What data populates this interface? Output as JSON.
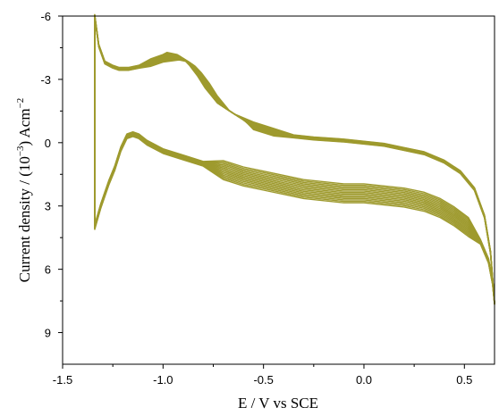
{
  "chart_data": {
    "type": "line",
    "title": "",
    "xlabel": "E / V vs SCE",
    "ylabel": {
      "text": "Current density / (10",
      "exp1": "−3",
      "mid": ") Acm",
      "exp2": "−2"
    },
    "xlim": [
      -1.5,
      0.65
    ],
    "ylim": [
      -6,
      10.5
    ],
    "y_inverted": true,
    "x_ticks": [
      -1.5,
      -1.0,
      -0.5,
      0.0,
      0.5
    ],
    "x_tick_labels": [
      "-1.5",
      "-1.0",
      "-0.5",
      "0.0",
      "0.5"
    ],
    "y_ticks": [
      -6,
      -3,
      0,
      3,
      6,
      9
    ],
    "y_tick_labels": [
      "-6",
      "-3",
      "0",
      "3",
      "6",
      "9"
    ],
    "grid": false,
    "series_color": "#9e9a2e",
    "cycles": 14,
    "series": [
      {
        "description": "cyclic voltammogram, averaged cycle path",
        "x": [
          -1.34,
          -1.32,
          -1.29,
          -1.25,
          -1.22,
          -1.17,
          -1.12,
          -1.06,
          -1.0,
          -0.95,
          -0.9,
          -0.87,
          -0.84,
          -0.8,
          -0.76,
          -0.7,
          -0.62,
          -0.55,
          -0.45,
          -0.35,
          -0.25,
          -0.1,
          0.0,
          0.1,
          0.2,
          0.3,
          0.4,
          0.48,
          0.55,
          0.6,
          0.63,
          0.65,
          0.64,
          0.62,
          0.58,
          0.52,
          0.45,
          0.38,
          0.3,
          0.2,
          0.1,
          0.0,
          -0.1,
          -0.2,
          -0.3,
          -0.4,
          -0.5,
          -0.6,
          -0.7,
          -0.8,
          -0.9,
          -1.0,
          -1.08,
          -1.12,
          -1.15,
          -1.18,
          -1.21,
          -1.24,
          -1.27,
          -1.31,
          -1.34
        ],
        "y": [
          -6.0,
          -4.6,
          -3.8,
          -3.6,
          -3.5,
          -3.5,
          -3.6,
          -3.8,
          -4.0,
          -4.1,
          -4.0,
          -3.8,
          -3.5,
          -3.0,
          -2.4,
          -1.7,
          -1.2,
          -0.8,
          -0.5,
          -0.3,
          -0.2,
          -0.1,
          0.0,
          0.1,
          0.3,
          0.5,
          0.9,
          1.4,
          2.2,
          3.5,
          5.2,
          7.6,
          6.6,
          5.6,
          4.7,
          4.0,
          3.5,
          3.1,
          2.8,
          2.6,
          2.5,
          2.4,
          2.4,
          2.3,
          2.2,
          2.0,
          1.8,
          1.6,
          1.3,
          1.0,
          0.7,
          0.4,
          0.0,
          -0.3,
          -0.4,
          -0.3,
          0.3,
          1.2,
          1.9,
          3.0,
          4.0
        ]
      }
    ]
  }
}
